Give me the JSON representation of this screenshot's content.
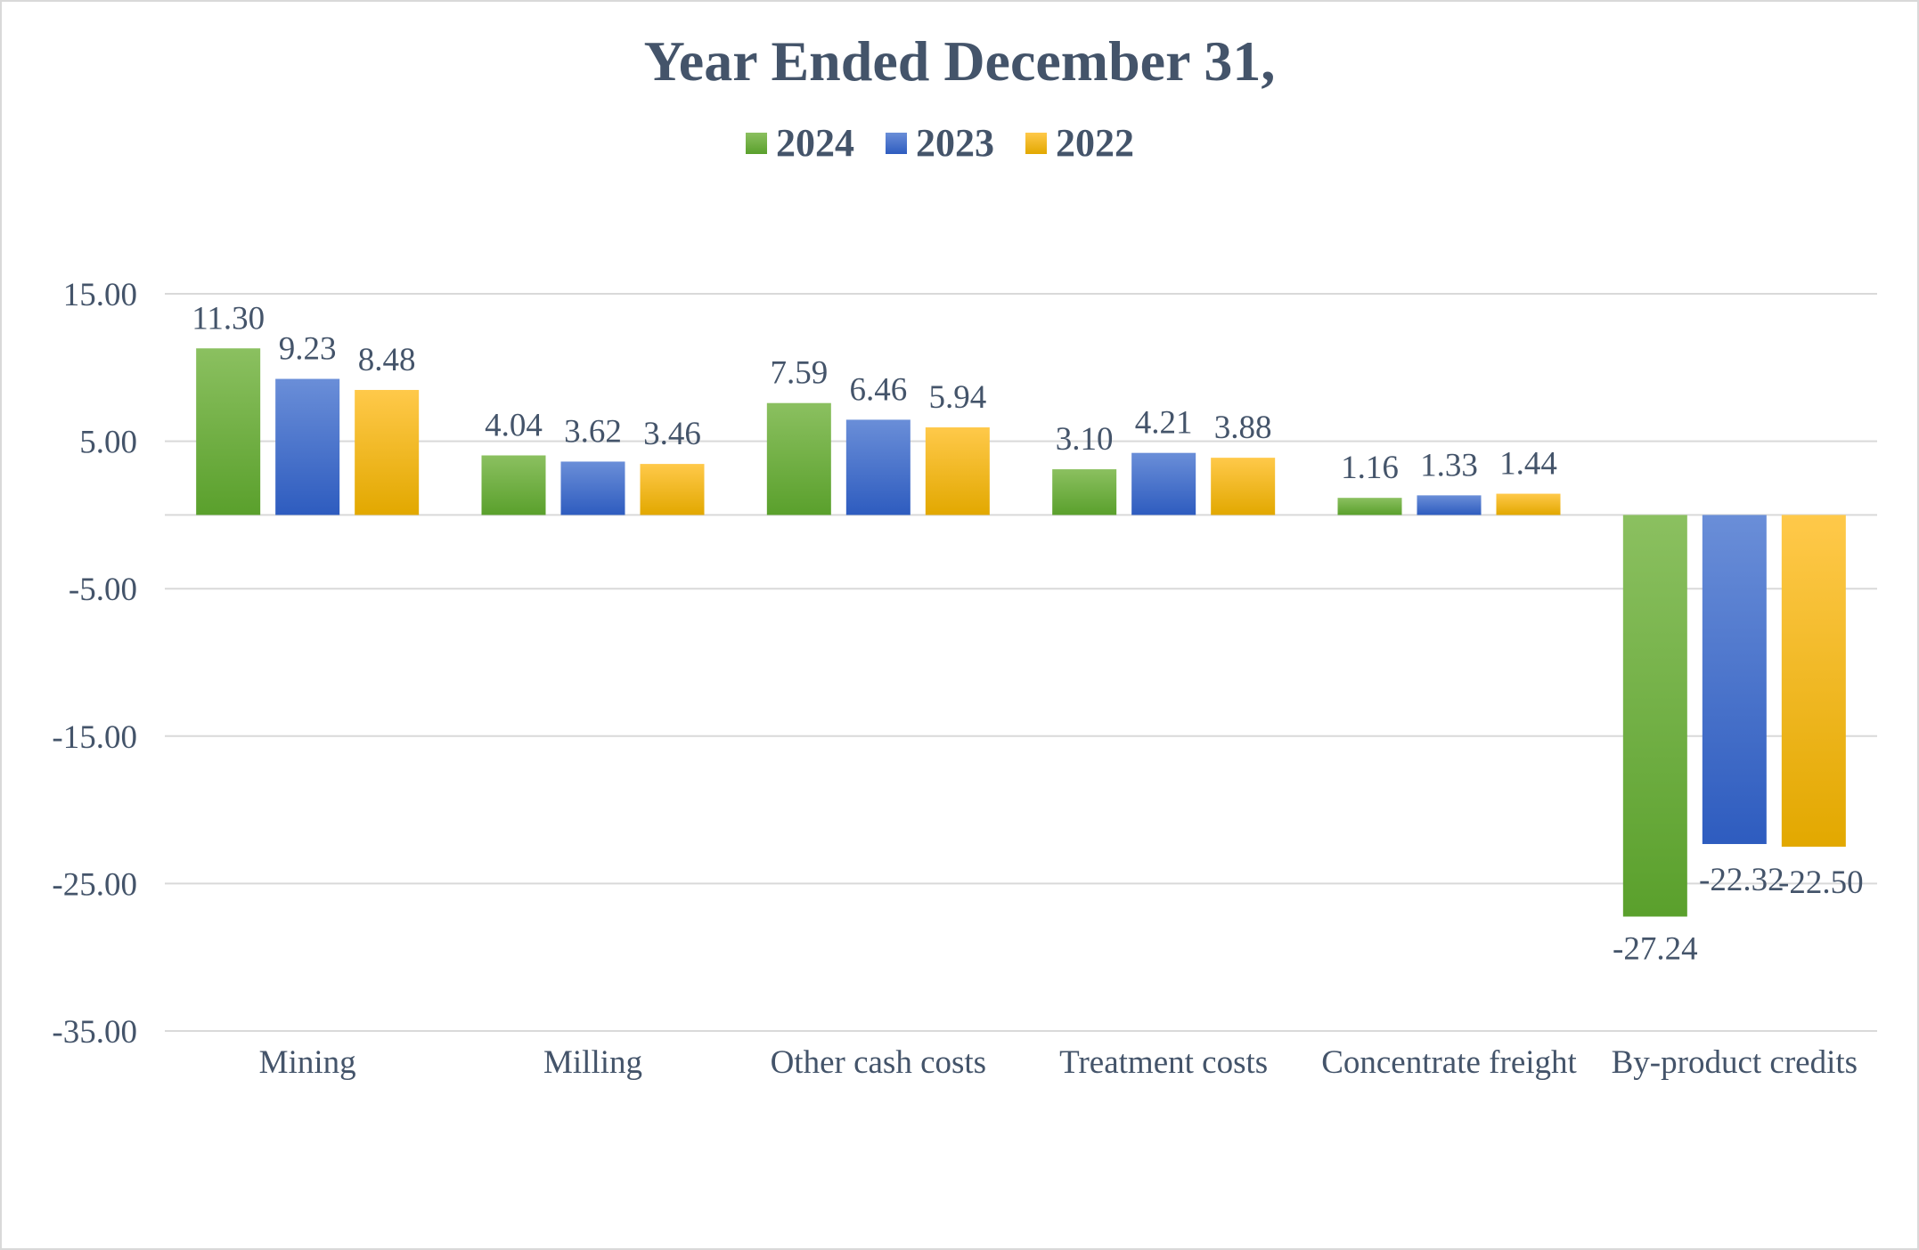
{
  "chart_data": {
    "type": "bar",
    "title": "Year Ended December 31,",
    "xlabel": "",
    "ylabel": "",
    "categories": [
      "Mining",
      "Milling",
      "Other cash costs",
      "Treatment costs",
      "Concentrate freight",
      "By-product credits"
    ],
    "series": [
      {
        "name": "2024",
        "values": [
          11.3,
          4.04,
          7.59,
          3.1,
          1.16,
          -27.24
        ],
        "labels": [
          "11.30",
          "4.04",
          "7.59",
          "3.10",
          "1.16",
          "-27.24"
        ]
      },
      {
        "name": "2023",
        "values": [
          9.23,
          3.62,
          6.46,
          4.21,
          1.33,
          -22.32
        ],
        "labels": [
          "9.23",
          "3.62",
          "6.46",
          "4.21",
          "1.33",
          "-22.32"
        ]
      },
      {
        "name": "2022",
        "values": [
          8.48,
          3.46,
          5.94,
          3.88,
          1.44,
          -22.5
        ],
        "labels": [
          "8.48",
          "3.46",
          "5.94",
          "3.88",
          "1.44",
          "-22.50"
        ]
      }
    ],
    "ylim": [
      -35,
      15
    ],
    "yticks": [
      15,
      5,
      -5,
      -15,
      -25,
      -35
    ],
    "ytick_labels": [
      "15.00",
      "5.00",
      "-5.00",
      "-15.00",
      "-25.00",
      "-35.00"
    ],
    "grid": true,
    "legend": "top-center",
    "colors": {
      "2024": {
        "top": "#8bc060",
        "bottom": "#5aa02c"
      },
      "2023": {
        "top": "#6a8ed8",
        "bottom": "#2e5cbf"
      },
      "2022": {
        "top": "#ffc94a",
        "bottom": "#e2a800"
      },
      "text": "#44546a",
      "title": "#44546a",
      "grid": "#d9d9d9",
      "frame": "#d9d9d9"
    }
  }
}
